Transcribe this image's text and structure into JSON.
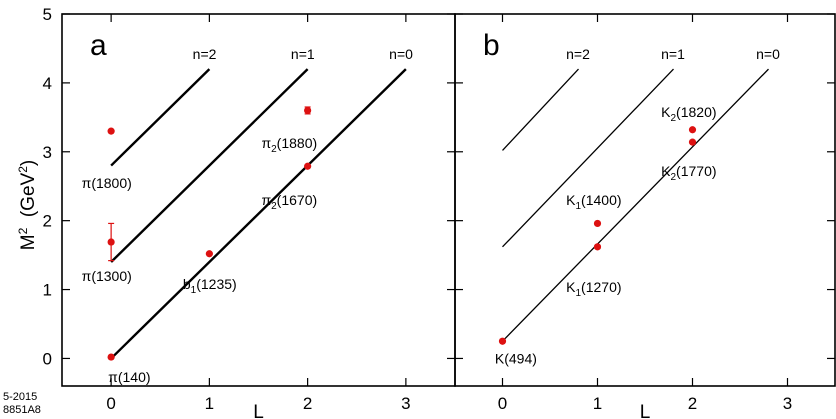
{
  "footer": {
    "line1": "5-2015",
    "line2": "8851A8"
  },
  "y_axis_title": {
    "main": "M",
    "sup": "2",
    "unit_open": "  (GeV",
    "unit_sup": "2",
    "unit_close": ")"
  },
  "chart_data": [
    {
      "type": "line",
      "panel_label": "a",
      "xlabel": "L",
      "xlim": [
        -0.5,
        3.5
      ],
      "ylim": [
        -0.4,
        5
      ],
      "xticks": [
        0,
        1,
        2,
        3
      ],
      "yticks": [
        0,
        1,
        2,
        3,
        4,
        5
      ],
      "line_style": "thick",
      "colors": {
        "line": "#000000",
        "point": "#dd1111",
        "error": "#dd1111"
      },
      "series": [
        {
          "name": "n=0",
          "x": [
            0,
            3
          ],
          "y": [
            0.0,
            4.2
          ]
        },
        {
          "name": "n=1",
          "x": [
            0,
            2
          ],
          "y": [
            1.4,
            4.2
          ]
        },
        {
          "name": "n=2",
          "x": [
            0,
            1
          ],
          "y": [
            2.8,
            4.2
          ]
        }
      ],
      "points": [
        {
          "label": "π(140)",
          "x": 0,
          "y": 0.02,
          "err": 0
        },
        {
          "label": "π(1300)",
          "x": 0,
          "y": 1.69,
          "err": 0.27
        },
        {
          "label": "π(1800)",
          "x": 0,
          "y": 3.3,
          "err": 0
        },
        {
          "label": "b1(1235)",
          "x": 1,
          "y": 1.52,
          "err": 0
        },
        {
          "label": "π2(1670)",
          "x": 2,
          "y": 2.79,
          "err": 0
        },
        {
          "label": "π2(1880)",
          "x": 2,
          "y": 3.6,
          "err": 0.05
        }
      ],
      "point_labels": [
        {
          "base": "π",
          "sub": "",
          "rest": "(140)",
          "x": -0.03,
          "y": -0.27
        },
        {
          "base": "π",
          "sub": "",
          "rest": "(1300)",
          "x": -0.3,
          "y": 1.2
        },
        {
          "base": "π",
          "sub": "",
          "rest": "(1800)",
          "x": -0.3,
          "y": 2.55
        },
        {
          "base": "b",
          "sub": "1",
          "rest": "(1235)",
          "x": 0.73,
          "y": 1.08
        },
        {
          "base": "π",
          "sub": "2",
          "rest": "(1670)",
          "x": 1.53,
          "y": 2.3
        },
        {
          "base": "π",
          "sub": "2",
          "rest": "(1880)",
          "x": 1.53,
          "y": 3.13
        }
      ],
      "series_labels": [
        {
          "text": "n=2",
          "x": 0.83,
          "y": 4.42
        },
        {
          "text": "n=1",
          "x": 1.83,
          "y": 4.42
        },
        {
          "text": "n=0",
          "x": 2.83,
          "y": 4.42
        }
      ]
    },
    {
      "type": "line",
      "panel_label": "b",
      "xlabel": "L",
      "xlim": [
        -0.5,
        3.5
      ],
      "ylim": [
        -0.4,
        5
      ],
      "xticks": [
        0,
        1,
        2,
        3
      ],
      "yticks": [
        0,
        1,
        2,
        3,
        4,
        5
      ],
      "line_style": "thin",
      "colors": {
        "line": "#000000",
        "point": "#dd1111",
        "error": "#dd1111"
      },
      "series": [
        {
          "name": "n=0",
          "x": [
            0,
            2.8
          ],
          "y": [
            0.25,
            4.2
          ]
        },
        {
          "name": "n=1",
          "x": [
            0,
            1.8
          ],
          "y": [
            1.62,
            4.2
          ]
        },
        {
          "name": "n=2",
          "x": [
            0,
            0.8
          ],
          "y": [
            3.02,
            4.2
          ]
        }
      ],
      "points": [
        {
          "label": "K(494)",
          "x": 0,
          "y": 0.25,
          "err": 0
        },
        {
          "label": "K1(1270)",
          "x": 1,
          "y": 1.62,
          "err": 0
        },
        {
          "label": "K1(1400)",
          "x": 1,
          "y": 1.96,
          "err": 0
        },
        {
          "label": "K2(1770)",
          "x": 2,
          "y": 3.14,
          "err": 0
        },
        {
          "label": "K2(1820)",
          "x": 2,
          "y": 3.32,
          "err": 0
        }
      ],
      "point_labels": [
        {
          "base": "K",
          "sub": "",
          "rest": "(494)",
          "x": -0.08,
          "y": 0.0
        },
        {
          "base": "K",
          "sub": "1",
          "rest": "(1270)",
          "x": 0.67,
          "y": 1.04
        },
        {
          "base": "K",
          "sub": "1",
          "rest": "(1400)",
          "x": 0.67,
          "y": 2.3
        },
        {
          "base": "K",
          "sub": "2",
          "rest": "(1770)",
          "x": 1.67,
          "y": 2.72
        },
        {
          "base": "K",
          "sub": "2",
          "rest": "(1820)",
          "x": 1.67,
          "y": 3.58
        }
      ],
      "series_labels": [
        {
          "text": "n=2",
          "x": 0.67,
          "y": 4.42
        },
        {
          "text": "n=1",
          "x": 1.67,
          "y": 4.42
        },
        {
          "text": "n=0",
          "x": 2.67,
          "y": 4.42
        }
      ]
    }
  ]
}
